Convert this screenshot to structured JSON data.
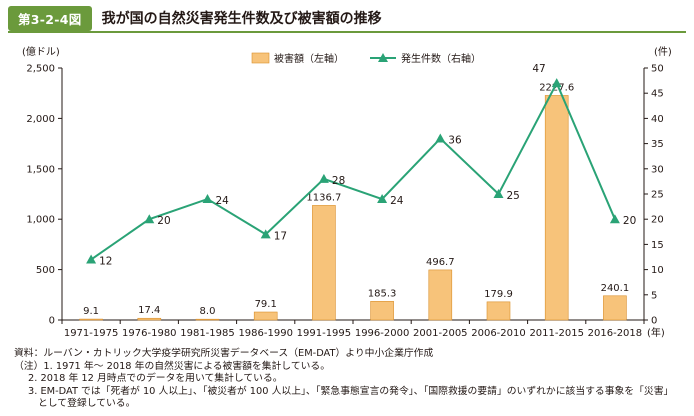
{
  "header": {
    "badge": "第3-2-4図",
    "title": "我が国の自然災害発生件数及び被害額の推移"
  },
  "colors": {
    "bar": "#f7c37a",
    "bar_stroke": "#d98f2b",
    "line": "#2aa376",
    "accent": "#6b9a3c"
  },
  "chart_data": {
    "type": "bar",
    "title": "我が国の自然災害発生件数及び被害額の推移",
    "categories": [
      "1971-1975",
      "1976-1980",
      "1981-1985",
      "1986-1990",
      "1991-1995",
      "1996-2000",
      "2001-2005",
      "2006-2010",
      "2011-2015",
      "2016-2018"
    ],
    "x_unit": "(年)",
    "series": [
      {
        "name": "被害額（左軸）",
        "type": "bar",
        "axis": "left",
        "values": [
          9.1,
          17.4,
          8.0,
          79.1,
          1136.7,
          185.3,
          496.7,
          179.9,
          2227.6,
          240.1
        ],
        "labels": [
          "9.1",
          "17.4",
          "8.0",
          "79.1",
          "1136.7",
          "185.3",
          "496.7",
          "179.9",
          "2227.6",
          "240.1"
        ]
      },
      {
        "name": "発生件数（右軸）",
        "type": "line",
        "axis": "right",
        "values": [
          12,
          20,
          24,
          17,
          28,
          24,
          36,
          25,
          47,
          20
        ],
        "labels": [
          "12",
          "20",
          "24",
          "17",
          "28",
          "24",
          "36",
          "25",
          "47",
          "20"
        ]
      }
    ],
    "y_left": {
      "unit": "(億ドル)",
      "min": 0,
      "max": 2500,
      "ticks": [
        0,
        500,
        1000,
        1500,
        2000,
        2500
      ],
      "tick_labels": [
        "0",
        "500",
        "1,000",
        "1,500",
        "2,000",
        "2,500"
      ]
    },
    "y_right": {
      "unit": "(件)",
      "min": 0,
      "max": 50,
      "ticks": [
        0,
        5,
        10,
        15,
        20,
        25,
        30,
        35,
        40,
        45,
        50
      ],
      "tick_labels": [
        "0",
        "5",
        "10",
        "15",
        "20",
        "25",
        "30",
        "35",
        "40",
        "45",
        "50"
      ]
    },
    "legend_position": "top-center",
    "grid": false
  },
  "notes": {
    "source": "資料：ルーバン・カトリック大学疫学研究所災害データベース（EM-DAT）より中小企業庁作成",
    "note1": "（注）1. 1971 年～ 2018 年の自然災害による被害額を集計している。",
    "note2": "2. 2018 年 12 月時点でのデータを用いて集計している。",
    "note3": "3. EM-DAT では「死者が 10 人以上」、「被災者が 100 人以上」、「緊急事態宣言の発令」、「国際救援の要請」のいずれかに該当する事象を「災害」",
    "note3b": "として登録している。"
  }
}
